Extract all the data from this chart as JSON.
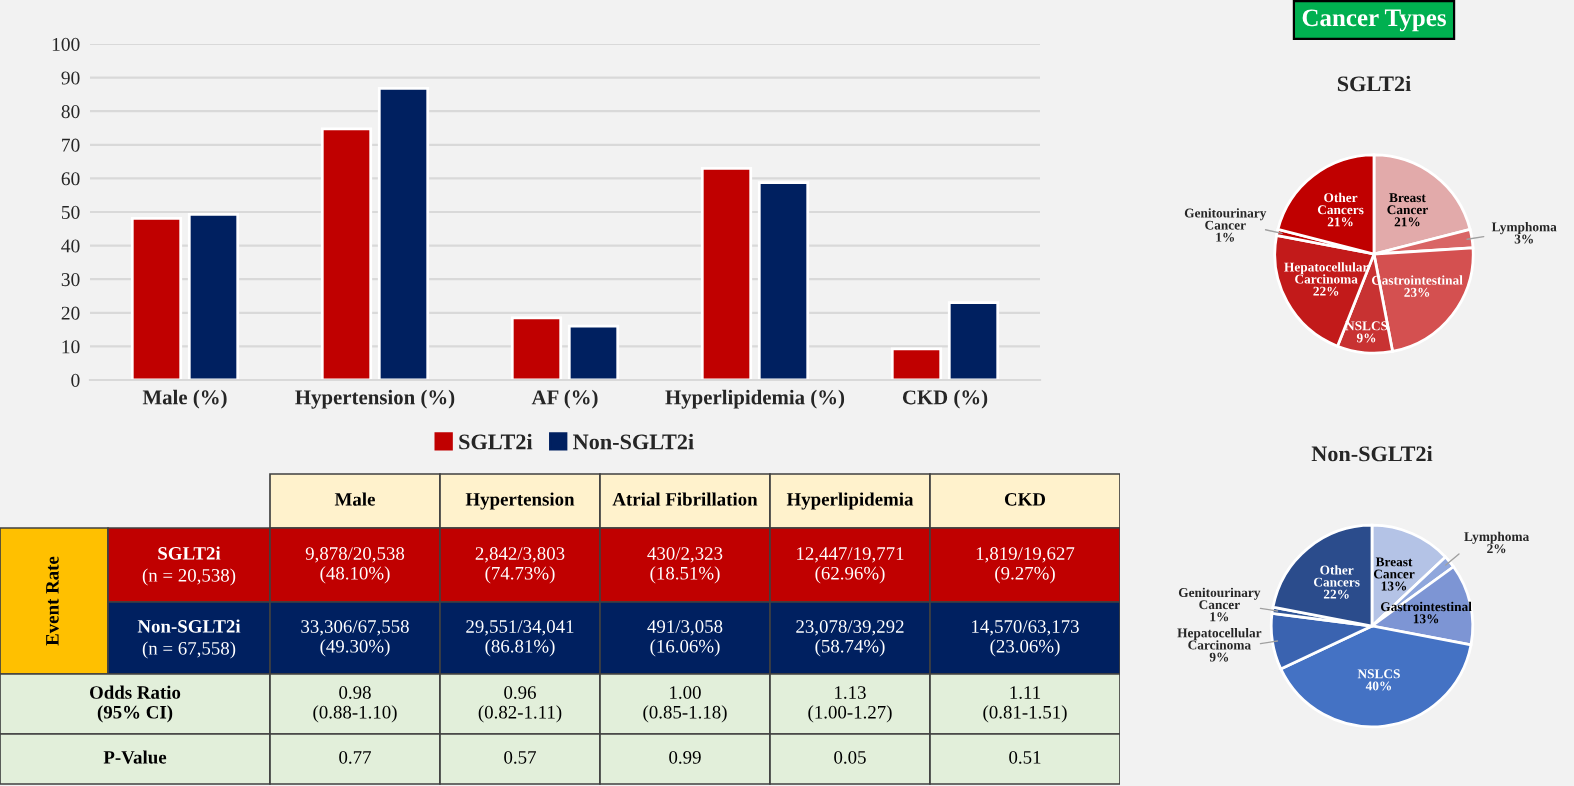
{
  "chart_data": [
    {
      "type": "bar",
      "categories": [
        "Male (%)",
        "Hypertension (%)",
        "AF (%)",
        "Hyperlipidemia (%)",
        "CKD (%)"
      ],
      "series": [
        {
          "name": "SGLT2i",
          "color": "#c00000",
          "values": [
            48.1,
            74.73,
            18.51,
            62.96,
            9.27
          ]
        },
        {
          "name": "Non-SGLT2i",
          "color": "#002060",
          "values": [
            49.3,
            86.81,
            16.06,
            58.74,
            23.06
          ]
        }
      ],
      "ylim": [
        0,
        100
      ],
      "yticks": [
        0,
        10,
        20,
        30,
        40,
        50,
        60,
        70,
        80,
        90,
        100
      ],
      "grid": "y",
      "legend": "bottom"
    },
    {
      "type": "other",
      "annotations": [
        "Male",
        "Hypertension",
        "Atrial Fibrillation",
        "Hyperlipidemia",
        "CKD",
        "Event Rate",
        "SGLT2i\n(n = 20,538)",
        "9,878/20,538\n(48.10%)",
        "2,842/3,803\n(74.73%)",
        "430/2,323\n(18.51%)",
        "12,447/19,771\n(62.96%)",
        "1,819/19,627\n(9.27%)",
        "Non-SGLT2i\n(n = 67,558)",
        "33,306/67,558\n(49.30%)",
        "29,551/34,041\n(86.81%)",
        "491/3,058\n(16.06%)",
        "23,078/39,292\n(58.74%)",
        "14,570/63,173\n(23.06%)",
        "Odds Ratio\n(95% CI)",
        "0.98\n(0.88-1.10)",
        "0.96\n(0.82-1.11)",
        "1.00\n(0.85-1.18)",
        "1.13\n(1.00-1.27)",
        "1.11\n(0.81-1.51)",
        "P-Value",
        "0.77",
        "0.57",
        "0.99",
        "0.05",
        "0.51"
      ]
    },
    {
      "type": "pie",
      "title": "SGLT2i",
      "annotations": [
        "Cancer Types"
      ],
      "categories": [
        "Breast Cancer",
        "Lymphoma",
        "Gastrointestinal",
        "NSLCS",
        "Hepatocellular Carcinoma",
        "Genitourinary Cancer",
        "Other Cancers"
      ],
      "values": [
        21,
        3,
        23,
        9,
        22,
        1,
        21
      ],
      "value_labels": [
        "21%",
        "3%",
        "23%",
        "9%",
        "22%",
        "1%",
        "21%"
      ],
      "colors": [
        "#e2aaaa",
        "#d96565",
        "#d45050",
        "#c83232",
        "#c21a1a",
        "#c00000",
        "#c00000"
      ]
    },
    {
      "type": "pie",
      "title": "Non-SGLT2i",
      "categories": [
        "Breast Cancer",
        "Lymphoma",
        "Gastrointestinal",
        "NSLCS",
        "Hepatocellular Carcinoma",
        "Genitourinary Cancer",
        "Other Cancers"
      ],
      "values": [
        13,
        2,
        13,
        40,
        9,
        1,
        22
      ],
      "value_labels": [
        "13%",
        "2%",
        "13%",
        "40%",
        "9%",
        "1%",
        "22%"
      ],
      "colors": [
        "#b4c3e6",
        "#8fa6dc",
        "#7d95d4",
        "#4472c4",
        "#3a63b0",
        "#2f5597",
        "#2b4c8c"
      ]
    }
  ]
}
